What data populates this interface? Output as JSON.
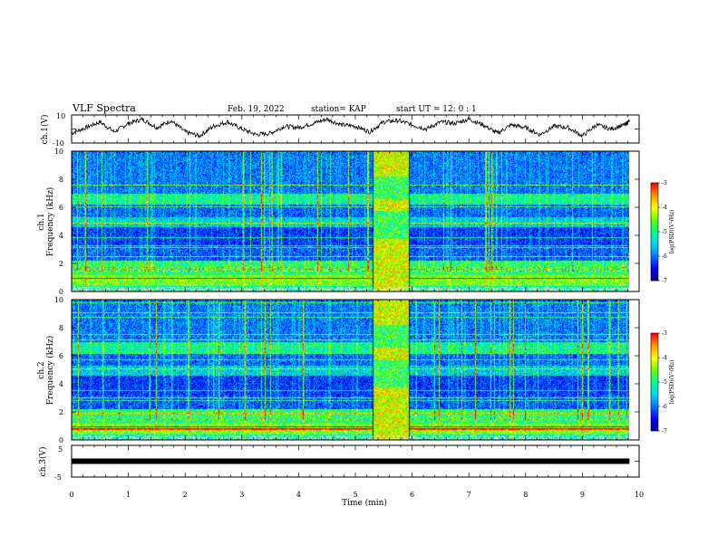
{
  "header": {
    "title": "VLF Spectra",
    "date": "Feb. 19, 2022",
    "station": "station= KAP",
    "start_time": "start  UT =   12: 0  : 1"
  },
  "colors": {
    "palette": [
      "#00008c",
      "#0000ff",
      "#0070ff",
      "#00d2ff",
      "#00ff8c",
      "#64ff00",
      "#ffff00",
      "#ff9600",
      "#ff0000",
      "#e6e6e6"
    ]
  },
  "chart_data": [
    {
      "type": "line",
      "name": "ch1-waveform",
      "ylabel": "ch.1(V)",
      "ylim": [
        -10,
        10
      ],
      "ytick_labels": [
        "10",
        "-10"
      ],
      "xlim": [
        0,
        10
      ],
      "x": [
        0,
        0.25,
        0.5,
        0.75,
        1.0,
        1.25,
        1.5,
        1.75,
        2.0,
        2.25,
        2.5,
        2.75,
        3.0,
        3.25,
        3.5,
        3.75,
        4.0,
        4.25,
        4.5,
        4.75,
        5.0,
        5.25,
        5.5,
        5.75,
        6.0,
        6.25,
        6.5,
        6.75,
        7.0,
        7.25,
        7.5,
        7.75,
        8.0,
        8.25,
        8.5,
        8.75,
        9.0,
        9.25,
        9.5,
        9.75,
        9.83
      ],
      "y": [
        -3,
        1,
        5,
        -2,
        4,
        7,
        1,
        6,
        -2,
        -5,
        2,
        5,
        0,
        -4,
        -3,
        2,
        1,
        4,
        7,
        3,
        2,
        -2,
        5,
        6,
        3,
        0,
        5,
        4,
        7,
        3,
        -3,
        3,
        1,
        -4,
        2,
        1,
        -5,
        3,
        0,
        3,
        6
      ]
    },
    {
      "type": "heatmap",
      "name": "ch1-spectrogram",
      "ylabel": "ch.1\nFrequency (kHz)",
      "ylim": [
        0,
        10
      ],
      "xlim": [
        0,
        10
      ],
      "data_x_extent": [
        0,
        9.83
      ],
      "ytick_labels": [
        "0",
        "2",
        "4",
        "6",
        "8",
        "10"
      ],
      "colorbar": {
        "label": "log(PSD)(V²/Hz)",
        "range": [
          -7,
          -3
        ],
        "tick_labels": [
          "-3",
          "-4",
          "-5",
          "-6",
          "-7"
        ]
      },
      "burst_window_min": [
        5.3,
        5.95
      ]
    },
    {
      "type": "heatmap",
      "name": "ch2-spectrogram",
      "ylabel": "ch.2\nFrequency (kHz)",
      "ylim": [
        0,
        10
      ],
      "xlim": [
        0,
        10
      ],
      "data_x_extent": [
        0,
        9.83
      ],
      "ytick_labels": [
        "0",
        "2",
        "4",
        "6",
        "8",
        "10"
      ],
      "colorbar": {
        "label": "log(PSD)(V²/Hz)",
        "range": [
          -7,
          -3
        ],
        "tick_labels": [
          "-3",
          "-4",
          "-5",
          "-6",
          "-7"
        ]
      },
      "burst_window_min": [
        5.3,
        5.95
      ]
    },
    {
      "type": "line",
      "name": "ch3-waveform",
      "ylabel": "ch.3(V)",
      "ylim": [
        -5,
        5
      ],
      "ytick_labels": [
        "5",
        "-5"
      ],
      "xlim": [
        0,
        10
      ],
      "x": [
        0,
        9.83
      ],
      "y": [
        0,
        0
      ],
      "xlabel": "Time (min)",
      "xtick_labels": [
        "0",
        "1",
        "2",
        "3",
        "4",
        "5",
        "6",
        "7",
        "8",
        "9",
        "10"
      ]
    }
  ]
}
